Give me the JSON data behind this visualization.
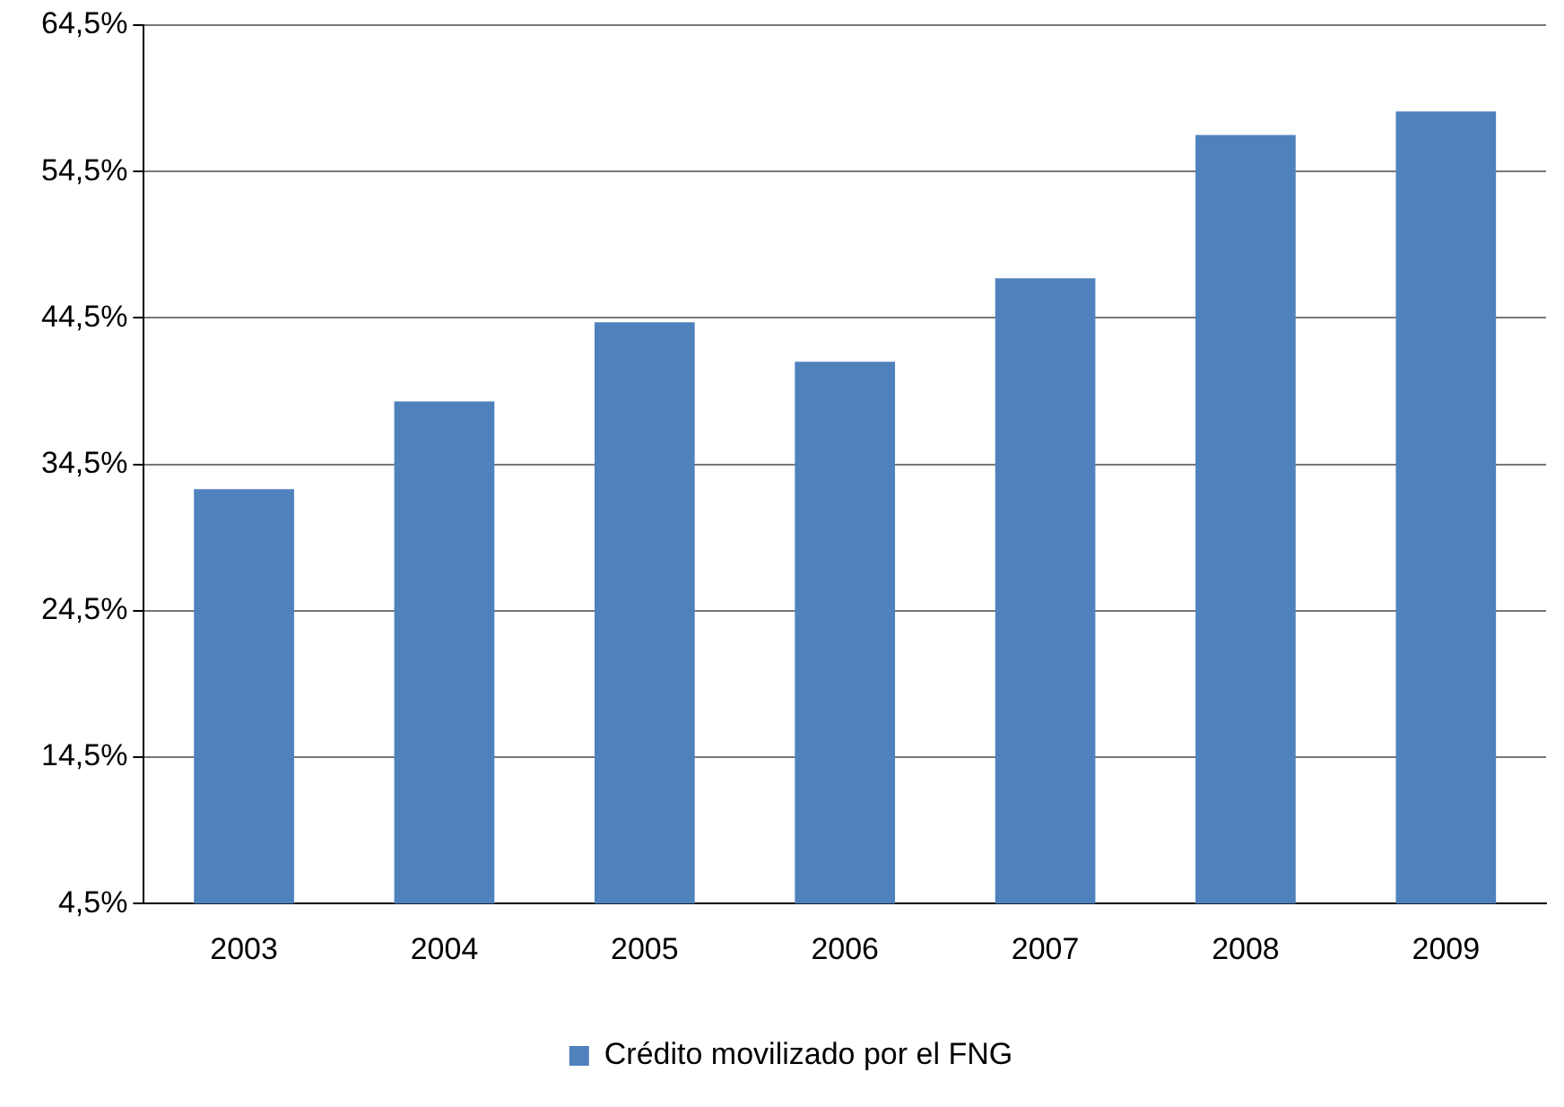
{
  "chart_data": {
    "type": "bar",
    "categories": [
      "2003",
      "2004",
      "2005",
      "2006",
      "2007",
      "2008",
      "2009"
    ],
    "series": [
      {
        "name": "Crédito movilizado por el FNG",
        "color": "#4f81bd",
        "values": [
          32.8,
          38.8,
          44.2,
          41.5,
          47.2,
          57.0,
          58.6
        ]
      }
    ],
    "ylim": [
      4.5,
      64.5
    ],
    "yticks": [
      {
        "value": 4.5,
        "label": "4,5%"
      },
      {
        "value": 14.5,
        "label": "14,5%"
      },
      {
        "value": 24.5,
        "label": "24,5%"
      },
      {
        "value": 34.5,
        "label": "34,5%"
      },
      {
        "value": 44.5,
        "label": "44,5%"
      },
      {
        "value": 54.5,
        "label": "54,5%"
      },
      {
        "value": 64.5,
        "label": "64,5%"
      }
    ],
    "grid": "y",
    "legend": "bottom"
  }
}
